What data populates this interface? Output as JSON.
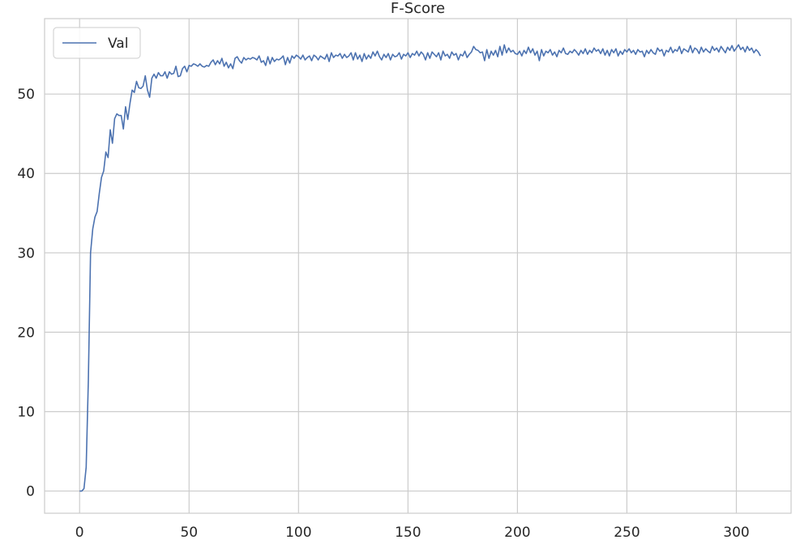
{
  "chart_data": {
    "type": "line",
    "title": "F-Score",
    "xlabel": "",
    "ylabel": "",
    "xlim": [
      -16,
      325
    ],
    "ylim": [
      -2.8,
      59.5
    ],
    "x_ticks": [
      0,
      50,
      100,
      150,
      200,
      250,
      300
    ],
    "y_ticks": [
      0,
      10,
      20,
      30,
      40,
      50
    ],
    "grid": true,
    "legend_position": "top-left",
    "series": [
      {
        "name": "Val",
        "color": "#4c72b0",
        "points": [
          [
            0,
            0
          ],
          [
            1,
            0
          ],
          [
            2,
            0.3
          ],
          [
            3,
            3
          ],
          [
            4,
            14
          ],
          [
            5,
            30
          ],
          [
            6,
            33
          ],
          [
            7,
            34.5
          ],
          [
            8,
            35.2
          ],
          [
            9,
            37.5
          ],
          [
            10,
            39.5
          ],
          [
            11,
            40.3
          ],
          [
            12,
            42.7
          ],
          [
            13,
            42
          ],
          [
            14,
            45.5
          ],
          [
            15,
            43.8
          ],
          [
            16,
            46.9
          ],
          [
            17,
            47.5
          ],
          [
            18,
            47.3
          ],
          [
            19,
            47.3
          ],
          [
            20,
            45.6
          ],
          [
            21,
            48.4
          ],
          [
            22,
            46.8
          ],
          [
            23,
            48.8
          ],
          [
            24,
            50.5
          ],
          [
            25,
            50.2
          ],
          [
            26,
            51.6
          ],
          [
            27,
            50.8
          ],
          [
            28,
            50.7
          ],
          [
            29,
            51
          ],
          [
            30,
            52.3
          ],
          [
            31,
            50.5
          ],
          [
            32,
            49.6
          ],
          [
            33,
            52
          ],
          [
            34,
            52.5
          ],
          [
            35,
            52
          ],
          [
            36,
            52.7
          ],
          [
            37,
            52.3
          ],
          [
            38,
            52.3
          ],
          [
            39,
            52.8
          ],
          [
            40,
            52
          ],
          [
            41,
            52.8
          ],
          [
            42,
            52.5
          ],
          [
            43,
            52.6
          ],
          [
            44,
            53.5
          ],
          [
            45,
            52.2
          ],
          [
            46,
            52.3
          ],
          [
            47,
            53.2
          ],
          [
            48,
            53.5
          ],
          [
            49,
            52.8
          ],
          [
            50,
            53.6
          ],
          [
            51,
            53.5
          ],
          [
            52,
            53.8
          ],
          [
            53,
            53.7
          ],
          [
            54,
            53.5
          ],
          [
            55,
            53.8
          ],
          [
            56,
            53.5
          ],
          [
            57,
            53.4
          ],
          [
            58,
            53.6
          ],
          [
            59,
            53.5
          ],
          [
            60,
            54
          ],
          [
            61,
            54.3
          ],
          [
            62,
            53.7
          ],
          [
            63,
            54.2
          ],
          [
            64,
            53.8
          ],
          [
            65,
            54.5
          ],
          [
            66,
            53.5
          ],
          [
            67,
            54
          ],
          [
            68,
            53.3
          ],
          [
            69,
            53.8
          ],
          [
            70,
            53.2
          ],
          [
            71,
            54.5
          ],
          [
            72,
            54.7
          ],
          [
            73,
            54.2
          ],
          [
            74,
            53.9
          ],
          [
            75,
            54.6
          ],
          [
            76,
            54.3
          ],
          [
            77,
            54.5
          ],
          [
            78,
            54.4
          ],
          [
            79,
            54.6
          ],
          [
            80,
            54.5
          ],
          [
            81,
            54.3
          ],
          [
            82,
            54.8
          ],
          [
            83,
            54
          ],
          [
            84,
            54.2
          ],
          [
            85,
            53.6
          ],
          [
            86,
            54.7
          ],
          [
            87,
            53.8
          ],
          [
            88,
            54.6
          ],
          [
            89,
            54.1
          ],
          [
            90,
            54.4
          ],
          [
            91,
            54.3
          ],
          [
            92,
            54.5
          ],
          [
            93,
            54.8
          ],
          [
            94,
            53.7
          ],
          [
            95,
            54.6
          ],
          [
            96,
            53.9
          ],
          [
            97,
            54.8
          ],
          [
            98,
            54.5
          ],
          [
            99,
            54.9
          ],
          [
            100,
            54.7
          ],
          [
            101,
            54.4
          ],
          [
            102,
            54.9
          ],
          [
            103,
            54.3
          ],
          [
            104,
            54.6
          ],
          [
            105,
            54.8
          ],
          [
            106,
            54.2
          ],
          [
            107,
            54.9
          ],
          [
            108,
            54.7
          ],
          [
            109,
            54.3
          ],
          [
            110,
            54.8
          ],
          [
            111,
            54.6
          ],
          [
            112,
            54.4
          ],
          [
            113,
            55
          ],
          [
            114,
            54.1
          ],
          [
            115,
            55.2
          ],
          [
            116,
            54.6
          ],
          [
            117,
            54.9
          ],
          [
            118,
            54.8
          ],
          [
            119,
            55.1
          ],
          [
            120,
            54.5
          ],
          [
            121,
            55
          ],
          [
            122,
            54.6
          ],
          [
            123,
            54.8
          ],
          [
            124,
            55.2
          ],
          [
            125,
            54.3
          ],
          [
            126,
            55.2
          ],
          [
            127,
            54.4
          ],
          [
            128,
            54.9
          ],
          [
            129,
            54.1
          ],
          [
            130,
            55.1
          ],
          [
            131,
            54.4
          ],
          [
            132,
            54.9
          ],
          [
            133,
            54.5
          ],
          [
            134,
            55.3
          ],
          [
            135,
            54.8
          ],
          [
            136,
            55.4
          ],
          [
            137,
            54.7
          ],
          [
            138,
            54.3
          ],
          [
            139,
            55
          ],
          [
            140,
            54.6
          ],
          [
            141,
            55.1
          ],
          [
            142,
            54.3
          ],
          [
            143,
            55
          ],
          [
            144,
            54.7
          ],
          [
            145,
            54.8
          ],
          [
            146,
            55.2
          ],
          [
            147,
            54.4
          ],
          [
            148,
            55
          ],
          [
            149,
            54.8
          ],
          [
            150,
            55.2
          ],
          [
            151,
            54.6
          ],
          [
            152,
            55.1
          ],
          [
            153,
            54.9
          ],
          [
            154,
            55.4
          ],
          [
            155,
            54.8
          ],
          [
            156,
            55.3
          ],
          [
            157,
            55
          ],
          [
            158,
            54.3
          ],
          [
            159,
            55.2
          ],
          [
            160,
            54.5
          ],
          [
            161,
            55.3
          ],
          [
            162,
            55
          ],
          [
            163,
            54.7
          ],
          [
            164,
            55.2
          ],
          [
            165,
            54.3
          ],
          [
            166,
            55.4
          ],
          [
            167,
            54.8
          ],
          [
            168,
            55
          ],
          [
            169,
            54.5
          ],
          [
            170,
            55.3
          ],
          [
            171,
            54.9
          ],
          [
            172,
            55.1
          ],
          [
            173,
            54.3
          ],
          [
            174,
            55
          ],
          [
            175,
            54.8
          ],
          [
            176,
            55.4
          ],
          [
            177,
            54.6
          ],
          [
            178,
            55
          ],
          [
            179,
            55.3
          ],
          [
            180,
            56
          ],
          [
            181,
            55.6
          ],
          [
            182,
            55.5
          ],
          [
            183,
            55.2
          ],
          [
            184,
            55.3
          ],
          [
            185,
            54.2
          ],
          [
            186,
            55.6
          ],
          [
            187,
            54.5
          ],
          [
            188,
            55.4
          ],
          [
            189,
            54.9
          ],
          [
            190,
            55.5
          ],
          [
            191,
            54.7
          ],
          [
            192,
            56
          ],
          [
            193,
            54.9
          ],
          [
            194,
            56.2
          ],
          [
            195,
            55.2
          ],
          [
            196,
            55.8
          ],
          [
            197,
            55.3
          ],
          [
            198,
            55.5
          ],
          [
            199,
            55.1
          ],
          [
            200,
            55
          ],
          [
            201,
            55.4
          ],
          [
            202,
            54.8
          ],
          [
            203,
            55.5
          ],
          [
            204,
            55.1
          ],
          [
            205,
            55.9
          ],
          [
            206,
            55.2
          ],
          [
            207,
            55.7
          ],
          [
            208,
            54.9
          ],
          [
            209,
            55.4
          ],
          [
            210,
            54.2
          ],
          [
            211,
            55.6
          ],
          [
            212,
            54.8
          ],
          [
            213,
            55.4
          ],
          [
            214,
            55.2
          ],
          [
            215,
            55.6
          ],
          [
            216,
            54.9
          ],
          [
            217,
            55.3
          ],
          [
            218,
            54.7
          ],
          [
            219,
            55.5
          ],
          [
            220,
            55.2
          ],
          [
            221,
            55.8
          ],
          [
            222,
            55.1
          ],
          [
            223,
            55
          ],
          [
            224,
            55.4
          ],
          [
            225,
            55.2
          ],
          [
            226,
            55.6
          ],
          [
            227,
            55.3
          ],
          [
            228,
            54.9
          ],
          [
            229,
            55.5
          ],
          [
            230,
            55.1
          ],
          [
            231,
            55.7
          ],
          [
            232,
            55
          ],
          [
            233,
            55.5
          ],
          [
            234,
            55.2
          ],
          [
            235,
            55.8
          ],
          [
            236,
            55.4
          ],
          [
            237,
            55.6
          ],
          [
            238,
            55.1
          ],
          [
            239,
            55.7
          ],
          [
            240,
            54.9
          ],
          [
            241,
            55.5
          ],
          [
            242,
            54.8
          ],
          [
            243,
            55.6
          ],
          [
            244,
            55.2
          ],
          [
            245,
            55.7
          ],
          [
            246,
            54.8
          ],
          [
            247,
            55.4
          ],
          [
            248,
            55
          ],
          [
            249,
            55.6
          ],
          [
            250,
            55.3
          ],
          [
            251,
            55.7
          ],
          [
            252,
            55.2
          ],
          [
            253,
            55.5
          ],
          [
            254,
            55
          ],
          [
            255,
            55.6
          ],
          [
            256,
            55.3
          ],
          [
            257,
            55.4
          ],
          [
            258,
            54.7
          ],
          [
            259,
            55.5
          ],
          [
            260,
            55.1
          ],
          [
            261,
            55.6
          ],
          [
            262,
            55.2
          ],
          [
            263,
            55
          ],
          [
            264,
            55.8
          ],
          [
            265,
            55.4
          ],
          [
            266,
            55.6
          ],
          [
            267,
            54.8
          ],
          [
            268,
            55.5
          ],
          [
            269,
            55.3
          ],
          [
            270,
            55.9
          ],
          [
            271,
            55.2
          ],
          [
            272,
            55.6
          ],
          [
            273,
            55.4
          ],
          [
            274,
            56
          ],
          [
            275,
            55.1
          ],
          [
            276,
            55.7
          ],
          [
            277,
            55.5
          ],
          [
            278,
            55.3
          ],
          [
            279,
            56.1
          ],
          [
            280,
            55.2
          ],
          [
            281,
            55.8
          ],
          [
            282,
            55.6
          ],
          [
            283,
            55.1
          ],
          [
            284,
            55.9
          ],
          [
            285,
            55.3
          ],
          [
            286,
            55.7
          ],
          [
            287,
            55.4
          ],
          [
            288,
            55.2
          ],
          [
            289,
            56
          ],
          [
            290,
            55.5
          ],
          [
            291,
            55.8
          ],
          [
            292,
            55.3
          ],
          [
            293,
            56
          ],
          [
            294,
            55.6
          ],
          [
            295,
            55.2
          ],
          [
            296,
            55.9
          ],
          [
            297,
            55.5
          ],
          [
            298,
            56.1
          ],
          [
            299,
            55.4
          ],
          [
            300,
            55.8
          ],
          [
            301,
            56.2
          ],
          [
            302,
            55.6
          ],
          [
            303,
            55.9
          ],
          [
            304,
            55.3
          ],
          [
            305,
            56
          ],
          [
            306,
            55.5
          ],
          [
            307,
            55.8
          ],
          [
            308,
            55.2
          ],
          [
            309,
            55.6
          ],
          [
            310,
            55.3
          ],
          [
            311,
            54.8
          ]
        ]
      }
    ]
  }
}
